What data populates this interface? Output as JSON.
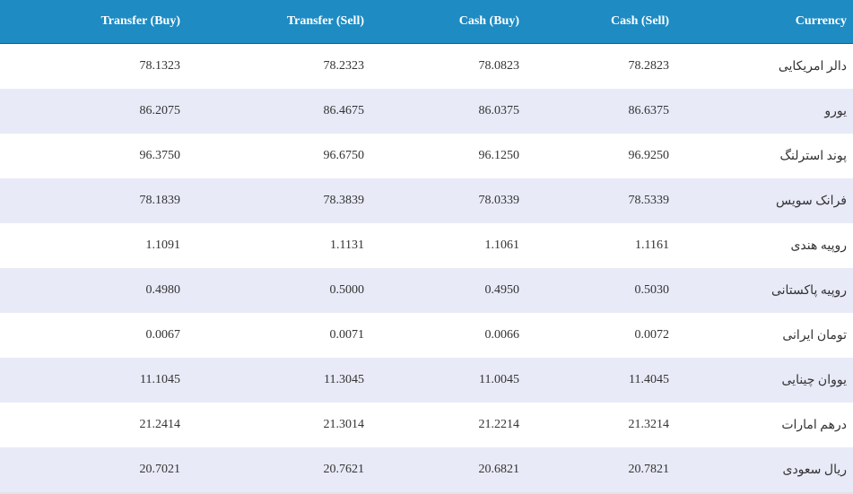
{
  "headers": {
    "transfer_buy": "Transfer (Buy)",
    "transfer_sell": "Transfer (Sell)",
    "cash_buy": "Cash (Buy)",
    "cash_sell": "Cash (Sell)",
    "currency": "Currency"
  },
  "rows": [
    {
      "currency": "دالر امریکایی",
      "transfer_buy": "78.1323",
      "transfer_sell": "78.2323",
      "cash_buy": "78.0823",
      "cash_sell": "78.2823"
    },
    {
      "currency": "یورو",
      "transfer_buy": "86.2075",
      "transfer_sell": "86.4675",
      "cash_buy": "86.0375",
      "cash_sell": "86.6375"
    },
    {
      "currency": "پوند استرلنگ",
      "transfer_buy": "96.3750",
      "transfer_sell": "96.6750",
      "cash_buy": "96.1250",
      "cash_sell": "96.9250"
    },
    {
      "currency": "فرانک سویس",
      "transfer_buy": "78.1839",
      "transfer_sell": "78.3839",
      "cash_buy": "78.0339",
      "cash_sell": "78.5339"
    },
    {
      "currency": "روپیه هندی",
      "transfer_buy": "1.1091",
      "transfer_sell": "1.1131",
      "cash_buy": "1.1061",
      "cash_sell": "1.1161"
    },
    {
      "currency": "روپیه پاکستانی",
      "transfer_buy": "0.4980",
      "transfer_sell": "0.5000",
      "cash_buy": "0.4950",
      "cash_sell": "0.5030"
    },
    {
      "currency": "تومان ایرانی",
      "transfer_buy": "0.0067",
      "transfer_sell": "0.0071",
      "cash_buy": "0.0066",
      "cash_sell": "0.0072"
    },
    {
      "currency": "یووان چینایی",
      "transfer_buy": "11.1045",
      "transfer_sell": "11.3045",
      "cash_buy": "11.0045",
      "cash_sell": "11.4045"
    },
    {
      "currency": "درهم امارات",
      "transfer_buy": "21.2414",
      "transfer_sell": "21.3014",
      "cash_buy": "21.2214",
      "cash_sell": "21.3214"
    },
    {
      "currency": "ریال سعودی",
      "transfer_buy": "20.7021",
      "transfer_sell": "20.7621",
      "cash_buy": "20.6821",
      "cash_sell": "20.7821"
    }
  ],
  "colors": {
    "header_bg": "#1e8bc3",
    "row_alt_bg": "#e8eaf7"
  }
}
